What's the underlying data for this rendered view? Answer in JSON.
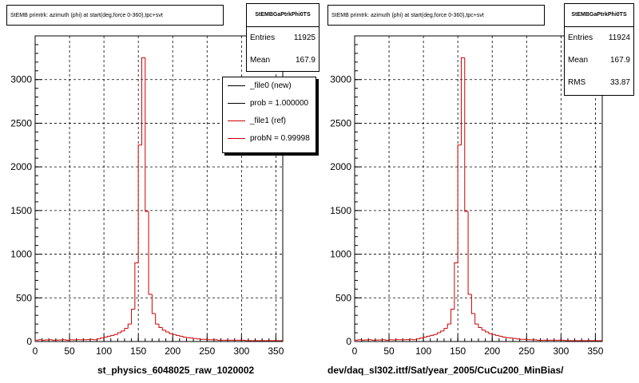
{
  "colors": {
    "ref": "#cc0000",
    "new": "#000000",
    "grid": "#000000"
  },
  "chart_data": [
    {
      "type": "bar",
      "title": "StEMB primtrk: azimuth (phi) at start(deg,force 0-360),tpc+svt",
      "xlabel": "st_physics_6048025_raw_1020002",
      "xlim": [
        0,
        360
      ],
      "ylim": [
        0,
        3500
      ],
      "xticks": [
        0,
        50,
        100,
        150,
        200,
        250,
        300,
        350
      ],
      "yticks": [
        0,
        500,
        1000,
        1500,
        2000,
        2500,
        3000
      ],
      "bin_width": 5,
      "grid": true,
      "stats": {
        "name": "StEMBGaPtrkPhi0TS",
        "rows": [
          {
            "label": "Entries",
            "value": "11925"
          },
          {
            "label": "Mean",
            "value": "167.9"
          }
        ]
      },
      "legend": [
        {
          "label": "_file0 (new)",
          "color": "#000000"
        },
        {
          "label": "prob = 1.000000",
          "color": "#000000"
        },
        {
          "label": "_file1 (ref)",
          "color": "#cc0000"
        },
        {
          "label": "probN = 0.99998",
          "color": "#cc0000"
        }
      ],
      "values": [
        15,
        20,
        15,
        18,
        20,
        15,
        17,
        18,
        20,
        15,
        20,
        18,
        20,
        20,
        20,
        22,
        25,
        20,
        30,
        40,
        50,
        60,
        70,
        80,
        100,
        120,
        150,
        200,
        370,
        900,
        2250,
        3250,
        1490,
        540,
        320,
        200,
        160,
        130,
        110,
        90,
        80,
        70,
        60,
        50,
        45,
        40,
        35,
        30,
        25,
        25,
        20,
        20,
        20,
        15,
        15,
        15,
        15,
        15,
        15,
        15,
        15,
        10,
        10,
        10,
        10,
        10,
        10,
        10,
        10,
        10,
        10,
        10
      ]
    },
    {
      "type": "bar",
      "title": "StEMB primtrk: azimuth (phi) at start(deg,force 0-360),tpc+svt",
      "xlabel": "dev/daq_sl302.ittf/Sat/year_2005/CuCu200_MinBias/",
      "xlim": [
        0,
        360
      ],
      "ylim": [
        0,
        3500
      ],
      "xticks": [
        0,
        50,
        100,
        150,
        200,
        250,
        300,
        350
      ],
      "yticks": [
        0,
        500,
        1000,
        1500,
        2000,
        2500,
        3000
      ],
      "bin_width": 5,
      "grid": true,
      "stats": {
        "name": "StEMBGaPtrkPhi0TS",
        "rows": [
          {
            "label": "Entries",
            "value": "11924"
          },
          {
            "label": "Mean",
            "value": "167.9"
          },
          {
            "label": "RMS",
            "value": "33.87"
          }
        ]
      },
      "legend": [],
      "values": [
        15,
        20,
        15,
        18,
        20,
        15,
        17,
        18,
        20,
        15,
        20,
        18,
        20,
        20,
        20,
        22,
        25,
        20,
        30,
        40,
        50,
        60,
        70,
        80,
        100,
        120,
        150,
        200,
        370,
        900,
        2250,
        3250,
        1490,
        540,
        320,
        200,
        160,
        130,
        110,
        90,
        80,
        70,
        60,
        50,
        45,
        40,
        35,
        30,
        25,
        25,
        20,
        20,
        20,
        15,
        15,
        15,
        15,
        15,
        15,
        15,
        15,
        10,
        10,
        10,
        10,
        10,
        10,
        10,
        10,
        10,
        10,
        10
      ]
    }
  ]
}
